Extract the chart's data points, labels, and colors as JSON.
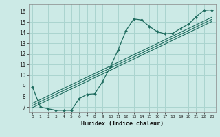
{
  "xlabel": "Humidex (Indice chaleur)",
  "ylabel": "",
  "bg_color": "#cceae6",
  "grid_color": "#aad4cf",
  "line_color": "#1e6b5e",
  "xlim": [
    -0.5,
    23.5
  ],
  "ylim": [
    6.5,
    16.7
  ],
  "xticks": [
    0,
    1,
    2,
    3,
    4,
    5,
    6,
    7,
    8,
    9,
    10,
    11,
    12,
    13,
    14,
    15,
    16,
    17,
    18,
    19,
    20,
    21,
    22,
    23
  ],
  "yticks": [
    7,
    8,
    9,
    10,
    11,
    12,
    13,
    14,
    15,
    16
  ],
  "data_x": [
    0,
    1,
    2,
    3,
    4,
    5,
    6,
    7,
    8,
    9,
    10,
    11,
    12,
    13,
    14,
    15,
    16,
    17,
    18,
    19,
    20,
    21,
    22,
    23
  ],
  "data_y": [
    8.9,
    7.0,
    6.85,
    6.7,
    6.7,
    6.7,
    7.8,
    8.2,
    8.25,
    9.4,
    10.8,
    12.4,
    14.2,
    15.3,
    15.2,
    14.6,
    14.1,
    13.9,
    13.95,
    14.4,
    14.8,
    15.5,
    16.1,
    16.15
  ],
  "reg_lines": [
    {
      "x0": 0,
      "y0": 7.35,
      "x1": 23,
      "y1": 15.45
    },
    {
      "x0": 0,
      "y0": 7.15,
      "x1": 23,
      "y1": 15.25
    },
    {
      "x0": 0,
      "y0": 6.95,
      "x1": 23,
      "y1": 15.05
    }
  ],
  "font_family": "monospace"
}
